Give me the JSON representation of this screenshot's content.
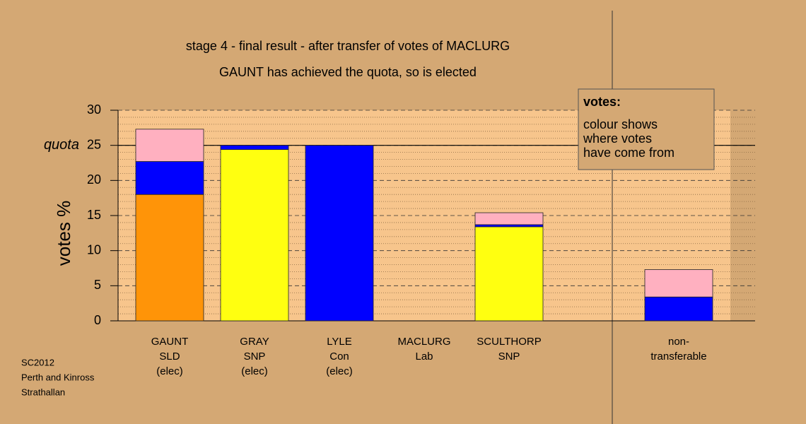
{
  "chart_data": {
    "type": "stacked_bar",
    "title": "stage 4 - final result - after transfer of votes of MACLURG",
    "subtitle": "GAUNT has achieved the quota, so is elected",
    "y_label": "votes %",
    "categories": [
      [
        "GAUNT",
        "SLD",
        "(elec)"
      ],
      [
        "GRAY",
        "SNP",
        "(elec)"
      ],
      [
        "LYLE",
        "Con",
        "(elec)"
      ],
      [
        "MACLURG",
        "Lab"
      ],
      [
        "SCULTHORP",
        "SNP"
      ],
      null,
      [
        "non-",
        "transferable"
      ]
    ],
    "series": [
      {
        "color": "#ff9408",
        "values": [
          18,
          null,
          null,
          null,
          null,
          null,
          null
        ]
      },
      {
        "color": "#ffff10",
        "values": [
          null,
          24.4,
          null,
          null,
          13.4,
          null,
          null
        ]
      },
      {
        "color": "#0000ff",
        "values": [
          4.7,
          0.6,
          25,
          null,
          0.3,
          null,
          3.4
        ]
      },
      {
        "color": "#ffb0c0",
        "values": [
          4.6,
          null,
          null,
          null,
          1.7,
          null,
          3.9
        ]
      }
    ],
    "ylim": [
      0,
      30
    ],
    "yticks": [
      0,
      5,
      10,
      15,
      20,
      25,
      30
    ],
    "yminorticks": [
      1,
      2,
      3,
      4,
      6,
      7,
      8,
      9,
      11,
      12,
      13,
      14,
      16,
      17,
      18,
      19,
      21,
      22,
      23,
      24,
      26,
      27,
      28,
      29
    ],
    "quota": {
      "value": 25,
      "label": "quota"
    },
    "grid": true,
    "legend_box": {
      "heading": "votes:",
      "lines": [
        "colour shows",
        "where votes",
        "have come from"
      ]
    },
    "footer": [
      "SC2012",
      "Perth and Kinross",
      "Strathallan"
    ]
  }
}
